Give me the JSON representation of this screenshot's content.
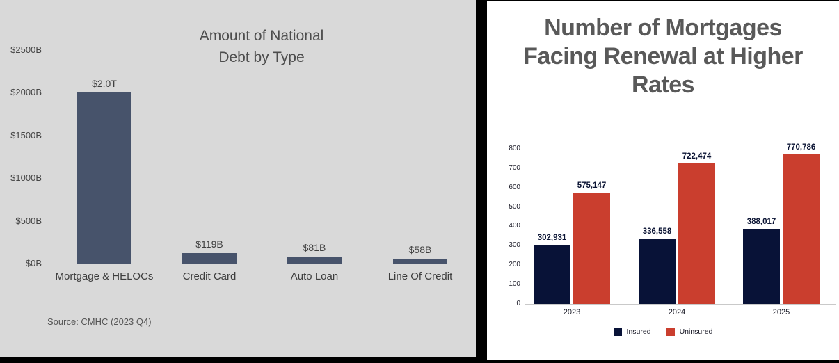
{
  "page": {
    "background": "#000000"
  },
  "left_panel": {
    "background": "#d9d9d9"
  },
  "right_panel": {
    "background": "#ffffff"
  },
  "chart_data": [
    {
      "id": "national-debt-by-type",
      "type": "bar",
      "panel": "left",
      "title": "Amount of National Debt by Type",
      "title_lines": [
        "Amount of National",
        "Debt by Type"
      ],
      "categories": [
        "Mortgage & HELOCs",
        "Credit Card",
        "Auto Loan",
        "Line Of Credit"
      ],
      "values": [
        2000,
        119,
        81,
        58
      ],
      "value_labels": [
        "$2.0T",
        "$119B",
        "$81B",
        "$58B"
      ],
      "y_ticks": [
        {
          "value": 0,
          "label": "$0B"
        },
        {
          "value": 500,
          "label": "$500B"
        },
        {
          "value": 1000,
          "label": "$1000B"
        },
        {
          "value": 1500,
          "label": "$1500B"
        },
        {
          "value": 2000,
          "label": "$2000B"
        },
        {
          "value": 2500,
          "label": "$2500B"
        }
      ],
      "ylim": [
        0,
        2500
      ],
      "grid": false,
      "legend": null,
      "bar_color": "#47536b",
      "background": "#d9d9d9",
      "source": "Source: CMHC (2023 Q4)"
    },
    {
      "id": "mortgages-facing-renewal",
      "type": "bar",
      "panel": "right",
      "title": "Number of Mortgages Facing Renewal at Higher Rates",
      "title_lines": [
        "Number of Mortgages",
        "Facing Renewal at Higher",
        "Rates"
      ],
      "title_color": "#595959",
      "categories": [
        "2023",
        "2024",
        "2025"
      ],
      "series": [
        {
          "name": "Insured",
          "color": "#081237",
          "values": [
            302931,
            336558,
            388017
          ],
          "value_labels": [
            "302,931",
            "336,558",
            "388,017"
          ]
        },
        {
          "name": "Uninsured",
          "color": "#ca3e2e",
          "values": [
            575147,
            722474,
            770786
          ],
          "value_labels": [
            "575,147",
            "722,474",
            "770,786"
          ]
        }
      ],
      "y_ticks": [
        {
          "value": 0,
          "label": "0"
        },
        {
          "value": 100,
          "label": "100"
        },
        {
          "value": 200,
          "label": "200"
        },
        {
          "value": 300,
          "label": "300"
        },
        {
          "value": 400,
          "label": "400"
        },
        {
          "value": 500,
          "label": "500"
        },
        {
          "value": 600,
          "label": "600"
        },
        {
          "value": 700,
          "label": "700"
        },
        {
          "value": 800,
          "label": "800"
        }
      ],
      "ylim": [
        0,
        800
      ],
      "y_axis_scale": "thousands",
      "grid": false,
      "legend_position": "bottom",
      "background": "#ffffff"
    }
  ]
}
